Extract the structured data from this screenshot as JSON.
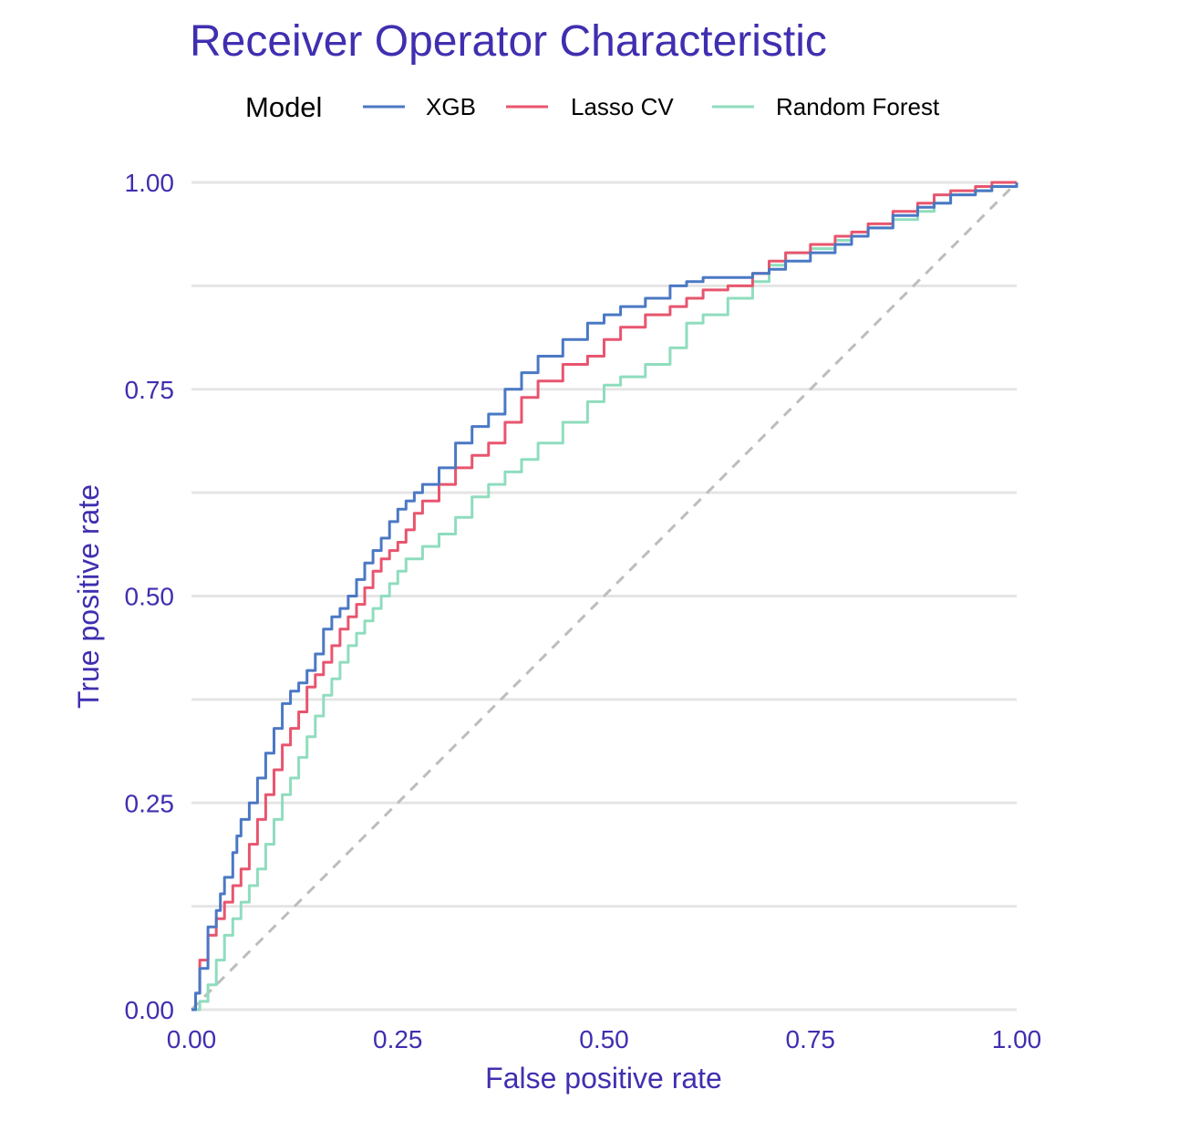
{
  "chart_data": {
    "type": "line",
    "title": "Receiver Operator Characteristic",
    "xlabel": "False positive rate",
    "ylabel": "True positive rate",
    "xlim": [
      0,
      1
    ],
    "ylim": [
      0,
      1
    ],
    "xticks": [
      "0.00",
      "0.25",
      "0.50",
      "0.75",
      "1.00"
    ],
    "yticks": [
      "0.00",
      "0.25",
      "0.50",
      "0.75",
      "1.00"
    ],
    "grid": true,
    "legend": {
      "title": "Model",
      "position": "top"
    },
    "colors": {
      "title": "#3F2FB0",
      "axis_text": "#3F2FB0",
      "legend_text": "#000000",
      "grid": "#E5E5E5",
      "diagonal": "#BDBDBD"
    },
    "reference_line": {
      "x": [
        0,
        1
      ],
      "y": [
        0,
        1
      ],
      "style": "dashed"
    },
    "series": [
      {
        "name": "XGB",
        "color": "#4A78C4",
        "x": [
          0,
          0.005,
          0.01,
          0.02,
          0.03,
          0.035,
          0.04,
          0.05,
          0.055,
          0.06,
          0.07,
          0.08,
          0.09,
          0.1,
          0.11,
          0.12,
          0.13,
          0.14,
          0.15,
          0.16,
          0.17,
          0.18,
          0.19,
          0.2,
          0.21,
          0.22,
          0.23,
          0.24,
          0.25,
          0.26,
          0.27,
          0.28,
          0.3,
          0.32,
          0.34,
          0.36,
          0.38,
          0.4,
          0.42,
          0.45,
          0.48,
          0.5,
          0.52,
          0.55,
          0.58,
          0.6,
          0.62,
          0.65,
          0.68,
          0.7,
          0.72,
          0.75,
          0.78,
          0.8,
          0.82,
          0.85,
          0.88,
          0.9,
          0.92,
          0.95,
          0.97,
          1.0
        ],
        "y": [
          0,
          0.02,
          0.05,
          0.1,
          0.12,
          0.14,
          0.16,
          0.19,
          0.21,
          0.23,
          0.25,
          0.28,
          0.31,
          0.34,
          0.37,
          0.385,
          0.395,
          0.41,
          0.43,
          0.46,
          0.475,
          0.485,
          0.5,
          0.52,
          0.54,
          0.555,
          0.57,
          0.59,
          0.605,
          0.615,
          0.625,
          0.635,
          0.655,
          0.685,
          0.705,
          0.72,
          0.75,
          0.77,
          0.79,
          0.81,
          0.83,
          0.84,
          0.85,
          0.86,
          0.875,
          0.88,
          0.885,
          0.885,
          0.89,
          0.895,
          0.905,
          0.915,
          0.925,
          0.935,
          0.945,
          0.96,
          0.97,
          0.975,
          0.985,
          0.99,
          0.995,
          1.0
        ]
      },
      {
        "name": "Lasso CV",
        "color": "#E8556E",
        "x": [
          0,
          0.005,
          0.01,
          0.02,
          0.03,
          0.04,
          0.05,
          0.06,
          0.07,
          0.08,
          0.09,
          0.1,
          0.11,
          0.12,
          0.13,
          0.14,
          0.15,
          0.16,
          0.17,
          0.18,
          0.19,
          0.2,
          0.21,
          0.22,
          0.23,
          0.24,
          0.25,
          0.26,
          0.27,
          0.28,
          0.3,
          0.32,
          0.34,
          0.36,
          0.38,
          0.4,
          0.42,
          0.45,
          0.48,
          0.5,
          0.52,
          0.55,
          0.58,
          0.6,
          0.62,
          0.65,
          0.68,
          0.7,
          0.72,
          0.75,
          0.78,
          0.8,
          0.82,
          0.85,
          0.88,
          0.9,
          0.92,
          0.95,
          0.97,
          1.0
        ],
        "y": [
          0,
          0.02,
          0.06,
          0.09,
          0.11,
          0.13,
          0.15,
          0.17,
          0.2,
          0.23,
          0.26,
          0.29,
          0.32,
          0.34,
          0.36,
          0.39,
          0.405,
          0.42,
          0.44,
          0.46,
          0.475,
          0.49,
          0.51,
          0.53,
          0.545,
          0.555,
          0.565,
          0.58,
          0.6,
          0.615,
          0.635,
          0.655,
          0.67,
          0.685,
          0.71,
          0.74,
          0.76,
          0.78,
          0.79,
          0.81,
          0.825,
          0.84,
          0.85,
          0.86,
          0.87,
          0.875,
          0.89,
          0.905,
          0.915,
          0.925,
          0.935,
          0.94,
          0.95,
          0.965,
          0.975,
          0.985,
          0.99,
          0.995,
          1.0,
          1.0
        ]
      },
      {
        "name": "Random Forest",
        "color": "#8FDDBE",
        "x": [
          0,
          0.01,
          0.02,
          0.03,
          0.04,
          0.05,
          0.06,
          0.07,
          0.08,
          0.09,
          0.1,
          0.11,
          0.12,
          0.13,
          0.14,
          0.15,
          0.16,
          0.17,
          0.18,
          0.19,
          0.2,
          0.21,
          0.22,
          0.23,
          0.24,
          0.25,
          0.26,
          0.28,
          0.3,
          0.32,
          0.34,
          0.36,
          0.38,
          0.4,
          0.42,
          0.45,
          0.48,
          0.5,
          0.52,
          0.55,
          0.58,
          0.6,
          0.62,
          0.65,
          0.68,
          0.7,
          0.72,
          0.75,
          0.78,
          0.8,
          0.82,
          0.85,
          0.88,
          0.9,
          0.92,
          0.95,
          0.97,
          1.0
        ],
        "y": [
          0,
          0.01,
          0.03,
          0.06,
          0.09,
          0.11,
          0.13,
          0.15,
          0.17,
          0.2,
          0.23,
          0.26,
          0.28,
          0.305,
          0.33,
          0.355,
          0.38,
          0.4,
          0.42,
          0.44,
          0.455,
          0.47,
          0.485,
          0.5,
          0.515,
          0.53,
          0.545,
          0.56,
          0.575,
          0.595,
          0.62,
          0.635,
          0.65,
          0.665,
          0.685,
          0.71,
          0.735,
          0.755,
          0.765,
          0.78,
          0.8,
          0.83,
          0.84,
          0.86,
          0.88,
          0.9,
          0.915,
          0.92,
          0.93,
          0.935,
          0.945,
          0.955,
          0.965,
          0.975,
          0.985,
          0.99,
          0.995,
          1.0
        ]
      }
    ]
  }
}
